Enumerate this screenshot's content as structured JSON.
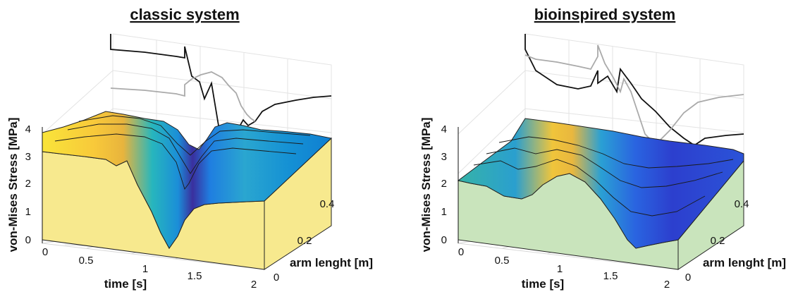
{
  "chart_data": [
    {
      "type": "surface",
      "title": "classic system",
      "xlabel": "time [s]",
      "ylabel": "arm lenght [m]",
      "zlabel": "von-Mises Stress [MPa]",
      "xticks": [
        "0",
        "0.5",
        "1",
        "1.5",
        "2"
      ],
      "yticks": [
        "0",
        "0.2",
        "0.4"
      ],
      "zticks": [
        "0",
        "1",
        "2",
        "3",
        "4"
      ],
      "xlim": [
        0,
        2
      ],
      "ylim": [
        0,
        0.5
      ],
      "zlim": [
        0,
        4
      ],
      "side_wall_color": "#f7e98e",
      "colormap": "parula",
      "grid": true,
      "surface_profile": {
        "time": [
          0,
          0.3,
          0.5,
          0.6,
          0.7,
          0.85,
          1.0,
          1.1,
          1.2,
          1.3,
          1.4,
          1.55,
          1.7,
          1.85,
          2.0
        ],
        "stress_at_arm_0": [
          3.2,
          3.2,
          3.2,
          2.9,
          2.7,
          1.8,
          0.9,
          0.4,
          0.6,
          1.2,
          1.7,
          2.2,
          2.6,
          2.9,
          3.1
        ]
      },
      "projected_curves": [
        "black",
        "gray"
      ]
    },
    {
      "type": "surface",
      "title": "bioinspired system",
      "xlabel": "time [s]",
      "ylabel": "arm lenght [m]",
      "zlabel": "von-Mises Stress [MPa]",
      "xticks": [
        "0",
        "0.5",
        "1",
        "1.5",
        "2"
      ],
      "yticks": [
        "0",
        "0.2",
        "0.4"
      ],
      "zticks": [
        "0",
        "1",
        "2",
        "3",
        "4"
      ],
      "xlim": [
        0,
        2
      ],
      "ylim": [
        0,
        0.5
      ],
      "zlim": [
        0,
        4
      ],
      "side_wall_color": "#c9e4bc",
      "colormap": "parula",
      "grid": true,
      "surface_profile": {
        "time": [
          0,
          0.2,
          0.35,
          0.5,
          0.65,
          0.8,
          1.0,
          1.15,
          1.3,
          1.45,
          1.6,
          1.75,
          2.0
        ],
        "stress_at_arm_0": [
          2.1,
          2.4,
          1.9,
          1.6,
          2.0,
          2.4,
          2.0,
          1.2,
          0.6,
          0.3,
          0.6,
          1.1,
          1.8
        ]
      },
      "projected_curves": [
        "black",
        "gray"
      ]
    }
  ]
}
